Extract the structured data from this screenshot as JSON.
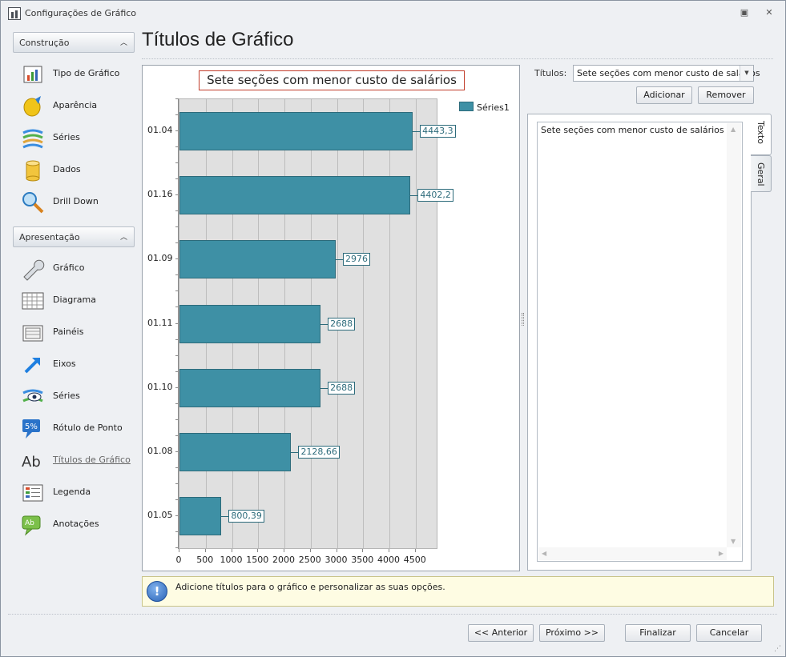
{
  "window": {
    "title": "Configurações de Gráfico"
  },
  "sidebar": {
    "groups": [
      {
        "label": "Construção",
        "items": [
          {
            "label": "Tipo de Gráfico",
            "icon": "chart-type-icon"
          },
          {
            "label": "Aparência",
            "icon": "appearance-icon"
          },
          {
            "label": "Séries",
            "icon": "series-icon"
          },
          {
            "label": "Dados",
            "icon": "data-cylinder-icon"
          },
          {
            "label": "Drill Down",
            "icon": "drill-down-icon"
          }
        ]
      },
      {
        "label": "Apresentação",
        "items": [
          {
            "label": "Gráfico",
            "icon": "wrench-icon"
          },
          {
            "label": "Diagrama",
            "icon": "diagram-grid-icon"
          },
          {
            "label": "Painéis",
            "icon": "panes-icon"
          },
          {
            "label": "Eixos",
            "icon": "axis-arrow-icon"
          },
          {
            "label": "Séries",
            "icon": "series-eye-icon"
          },
          {
            "label": "Rótulo de Ponto",
            "icon": "point-label-icon"
          },
          {
            "label": "Títulos de Gráfico",
            "icon": "titles-ab-icon"
          },
          {
            "label": "Legenda",
            "icon": "legend-icon"
          },
          {
            "label": "Anotações",
            "icon": "annotation-icon"
          }
        ]
      }
    ]
  },
  "page": {
    "title": "Títulos de Gráfico"
  },
  "chart_data": {
    "type": "bar",
    "orientation": "horizontal",
    "title": "Sete seções com menor custo de salários",
    "categories": [
      "01.04",
      "01.16",
      "01.09",
      "01.11",
      "01.10",
      "01.08",
      "01.05"
    ],
    "series": [
      {
        "name": "Séries1",
        "values": [
          4443.3,
          4402.2,
          2976,
          2688,
          2688,
          2128.66,
          800.39
        ]
      }
    ],
    "value_labels": [
      "4443,3",
      "4402,2",
      "2976",
      "2688",
      "2688",
      "2128,66",
      "800,39"
    ],
    "xticks": [
      0,
      500,
      1000,
      1500,
      2000,
      2500,
      3000,
      3500,
      4000,
      4500
    ],
    "xlim": [
      0,
      4900
    ],
    "grid": true,
    "legend_position": "top-right",
    "color": "#3e90a5"
  },
  "titles_panel": {
    "label": "Títulos:",
    "selected": "Sete seções com menor custo de salários",
    "add_label": "Adicionar",
    "remove_label": "Remover",
    "text_value": "Sete seções com menor custo de salários",
    "tabs": [
      "Texto",
      "Geral"
    ]
  },
  "info": {
    "text": "Adicione títulos para o gráfico e personalizar as suas opções."
  },
  "footer": {
    "prev": "<< Anterior",
    "next": "Próximo >>",
    "finish": "Finalizar",
    "cancel": "Cancelar"
  }
}
